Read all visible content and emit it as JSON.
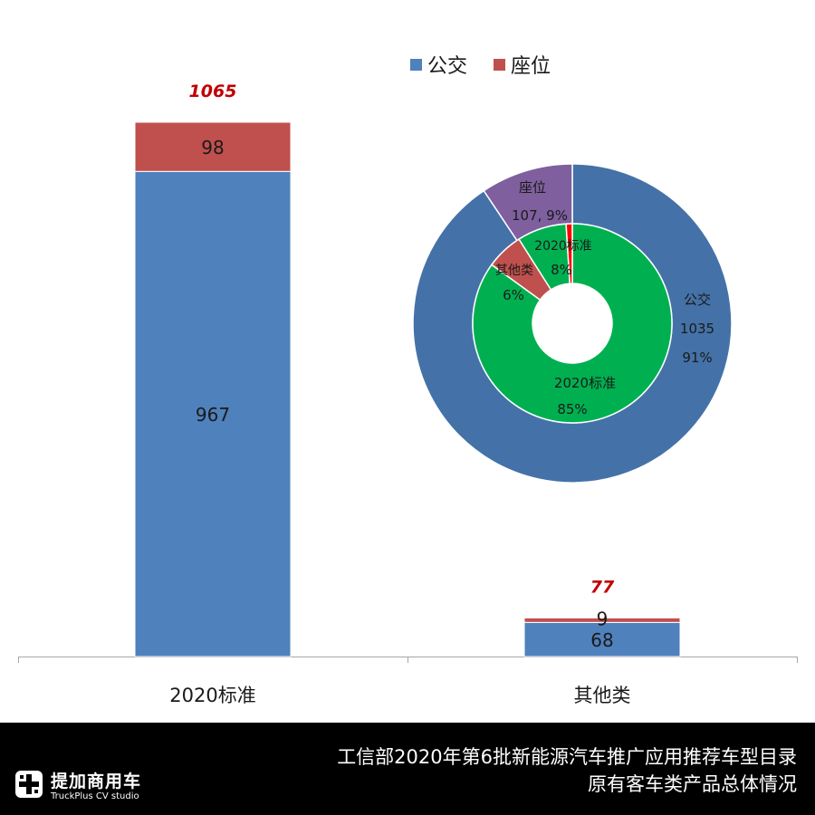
{
  "chart_data": [
    {
      "type": "bar",
      "stacked": true,
      "categories": [
        "2020标准",
        "其他类"
      ],
      "series": [
        {
          "name": "公交",
          "values": [
            967,
            68
          ],
          "color": "#4f81bd"
        },
        {
          "name": "座位",
          "values": [
            98,
            9
          ],
          "color": "#c0504d"
        }
      ],
      "totals": [
        1065,
        77
      ],
      "total_color": "#c00000",
      "legend_position": "top-right",
      "ylim": [
        0,
        1065
      ],
      "grid": false
    },
    {
      "type": "pie",
      "donut": true,
      "outer_ring": [
        {
          "label": "公交",
          "value_text": "1035",
          "percent_text": "91%",
          "value": 1035,
          "color": "#4472a8"
        },
        {
          "label": "座位",
          "value_text": "107, 9%",
          "value": 107,
          "color": "#7f5f9e"
        }
      ],
      "inner_ring": [
        {
          "label": "2020标准",
          "percent_text": "85%",
          "value": 85,
          "color": "#00b050"
        },
        {
          "label": "其他类",
          "percent_text": "6%",
          "value": 6,
          "color": "#c0504d"
        },
        {
          "label": "2020标准",
          "percent_text": "8%",
          "value": 8,
          "color": "#00b050"
        },
        {
          "label": "",
          "percent_text": "",
          "value": 1,
          "color": "#ff0000"
        }
      ]
    }
  ],
  "footer": {
    "logo_text": "提加商用车",
    "logo_sub": "TruckPlus CV studio",
    "title": "工信部2020年第6批新能源汽车推广应用推荐车型目录",
    "subtitle": "原有客车类产品总体情况"
  }
}
